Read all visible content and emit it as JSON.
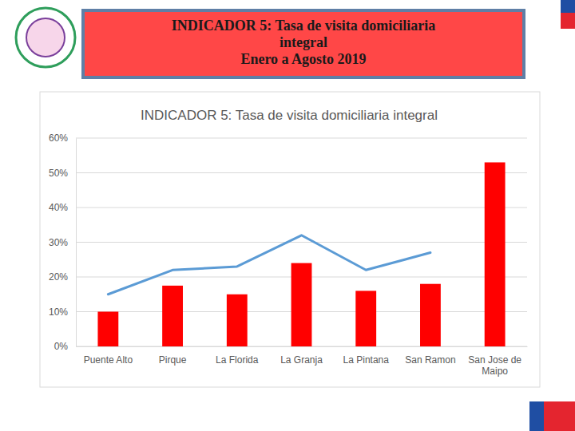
{
  "header": {
    "lines": [
      "INDICADOR 5: Tasa de visita domiciliaria",
      "integral",
      "Enero a Agosto 2019"
    ]
  },
  "chart_data": {
    "type": "bar",
    "title": "INDICADOR 5: Tasa de visita domiciliaria integral",
    "categories": [
      "Puente Alto",
      "Pirque",
      "La Florida",
      "La Granja",
      "La Pintana",
      "San Ramon",
      "San Jose de Maipo"
    ],
    "series": [
      {
        "type": "bar",
        "color": "#ff0000",
        "values": [
          10,
          17.5,
          15,
          24,
          16,
          18,
          53
        ]
      },
      {
        "type": "line",
        "color": "#5b9bd5",
        "values": [
          15,
          22,
          23,
          32,
          22,
          27,
          null
        ]
      }
    ],
    "ylim": [
      0,
      60
    ],
    "yticks": [
      {
        "value": 0,
        "label": "0%"
      },
      {
        "value": 10,
        "label": "10%"
      },
      {
        "value": 20,
        "label": "20%"
      },
      {
        "value": 30,
        "label": "30%"
      },
      {
        "value": 40,
        "label": "40%"
      },
      {
        "value": 50,
        "label": "50%"
      },
      {
        "value": 60,
        "label": "60%"
      }
    ],
    "grid": true
  }
}
